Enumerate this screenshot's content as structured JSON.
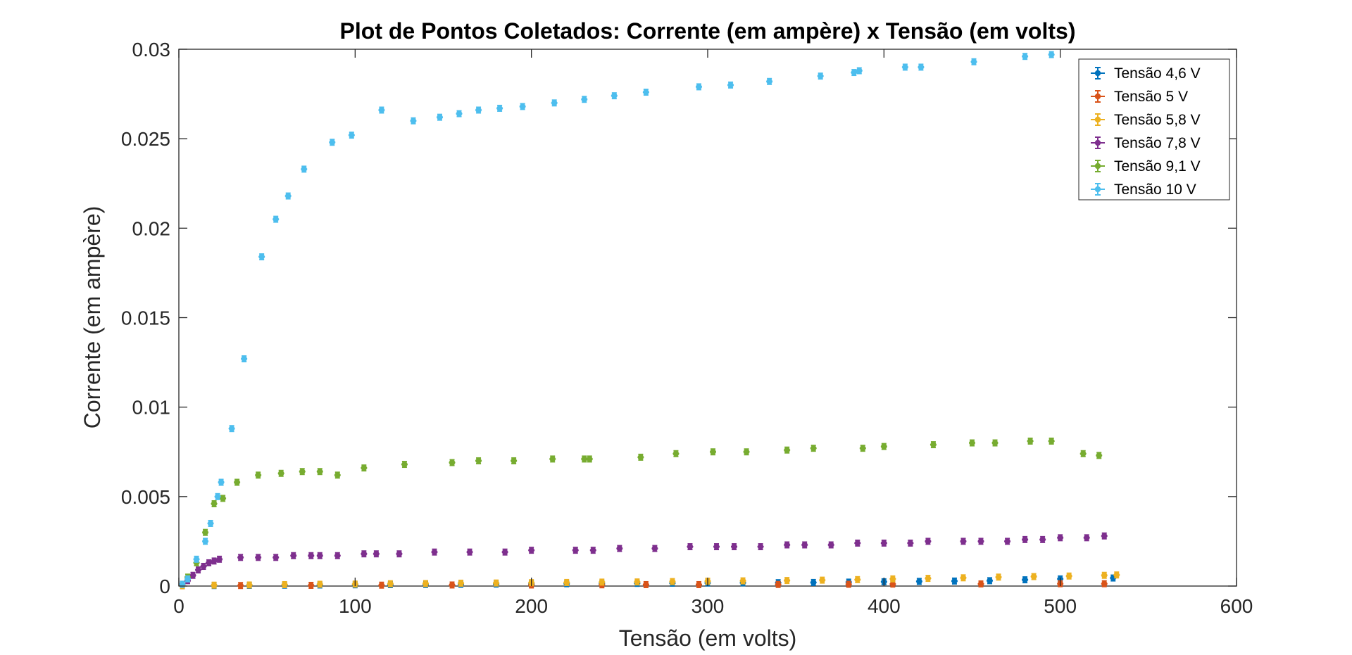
{
  "chart_data": {
    "type": "scatter",
    "title": "Plot de Pontos Coletados: Corrente (em ampère) x Tensão (em volts)",
    "xlabel": "Tensão (em volts)",
    "ylabel": "Corrente (em ampère)",
    "xlim": [
      0,
      600
    ],
    "ylim": [
      0,
      0.03
    ],
    "x_ticks": [
      0,
      100,
      200,
      300,
      400,
      500,
      600
    ],
    "x_tick_labels": [
      "0",
      "100",
      "200",
      "300",
      "400",
      "500",
      "600"
    ],
    "y_ticks": [
      0,
      0.005,
      0.01,
      0.015,
      0.02,
      0.025,
      0.03
    ],
    "y_tick_labels": [
      "0",
      "0.005",
      "0.01",
      "0.015",
      "0.02",
      "0.025",
      "0.03"
    ],
    "grid": false,
    "legend_position": "top-right",
    "error_bars": true,
    "series": [
      {
        "name": "Tensão 4,6 V",
        "color": "#0072BD",
        "x": [
          2,
          20,
          40,
          60,
          80,
          100,
          120,
          140,
          160,
          180,
          200,
          220,
          240,
          260,
          280,
          300,
          320,
          340,
          360,
          380,
          400,
          420,
          440,
          460,
          480,
          500,
          530
        ],
        "y": [
          2e-05,
          3e-05,
          4e-05,
          5e-05,
          6e-05,
          7e-05,
          8e-05,
          9e-05,
          0.0001,
          0.00011,
          0.00012,
          0.00013,
          0.00014,
          0.00015,
          0.00016,
          0.00017,
          0.00018,
          0.00019,
          0.0002,
          0.00022,
          0.00024,
          0.00026,
          0.00028,
          0.0003,
          0.00035,
          0.0004,
          0.00045
        ]
      },
      {
        "name": "Tensão 5 V",
        "color": "#D95319",
        "x": [
          2,
          35,
          75,
          115,
          155,
          200,
          240,
          265,
          295,
          340,
          380,
          405,
          455,
          500,
          525
        ],
        "y": [
          2e-05,
          3e-05,
          4e-05,
          5e-05,
          6e-05,
          6e-05,
          7e-05,
          8e-05,
          8e-05,
          9e-05,
          0.0001,
          0.00011,
          0.00012,
          0.00013,
          0.00013
        ]
      },
      {
        "name": "Tensão 5,8 V",
        "color": "#EDB120",
        "x": [
          2,
          20,
          40,
          60,
          80,
          100,
          120,
          140,
          160,
          180,
          200,
          220,
          240,
          260,
          280,
          300,
          320,
          345,
          365,
          385,
          405,
          425,
          445,
          465,
          485,
          505,
          525,
          532
        ],
        "y": [
          3e-05,
          5e-05,
          6e-05,
          8e-05,
          0.0001,
          0.00011,
          0.00013,
          0.00014,
          0.00016,
          0.00017,
          0.00019,
          0.0002,
          0.00022,
          0.00023,
          0.00025,
          0.00027,
          0.00029,
          0.00031,
          0.00033,
          0.00036,
          0.0004,
          0.00043,
          0.00046,
          0.0005,
          0.00053,
          0.00056,
          0.0006,
          0.00062
        ]
      },
      {
        "name": "Tensão 7,8 V",
        "color": "#7E2F8E",
        "x": [
          2,
          5,
          8,
          11,
          14,
          17,
          20,
          23,
          35,
          45,
          55,
          65,
          75,
          80,
          90,
          105,
          112,
          125,
          145,
          165,
          185,
          200,
          225,
          235,
          250,
          270,
          290,
          305,
          315,
          330,
          345,
          355,
          370,
          385,
          400,
          415,
          425,
          445,
          455,
          470,
          480,
          490,
          500,
          515,
          525
        ],
        "y": [
          0.0001,
          0.0003,
          0.0006,
          0.0009,
          0.0011,
          0.0013,
          0.0014,
          0.0015,
          0.0016,
          0.0016,
          0.0016,
          0.0017,
          0.0017,
          0.0017,
          0.0017,
          0.0018,
          0.0018,
          0.0018,
          0.0019,
          0.0019,
          0.0019,
          0.002,
          0.002,
          0.002,
          0.0021,
          0.0021,
          0.0022,
          0.0022,
          0.0022,
          0.0022,
          0.0023,
          0.0023,
          0.0023,
          0.0024,
          0.0024,
          0.0024,
          0.0025,
          0.0025,
          0.0025,
          0.0025,
          0.0026,
          0.0026,
          0.0027,
          0.0027,
          0.0028
        ]
      },
      {
        "name": "Tensão 9,1 V",
        "color": "#77AC30",
        "x": [
          5,
          10,
          15,
          20,
          25,
          33,
          45,
          58,
          70,
          80,
          90,
          105,
          128,
          155,
          170,
          190,
          212,
          230,
          233,
          262,
          282,
          303,
          322,
          345,
          360,
          388,
          400,
          428,
          450,
          463,
          483,
          495,
          513,
          522
        ],
        "y": [
          0.0005,
          0.0013,
          0.003,
          0.0046,
          0.0049,
          0.0058,
          0.0062,
          0.0063,
          0.0064,
          0.0064,
          0.0062,
          0.0066,
          0.0068,
          0.0069,
          0.007,
          0.007,
          0.0071,
          0.0071,
          0.0071,
          0.0072,
          0.0074,
          0.0075,
          0.0075,
          0.0076,
          0.0077,
          0.0077,
          0.0078,
          0.0079,
          0.008,
          0.008,
          0.0081,
          0.0081,
          0.0074,
          0.0073
        ]
      },
      {
        "name": "Tensão 10 V",
        "color": "#4DBEEE",
        "x": [
          2,
          5,
          10,
          15,
          18,
          22,
          24,
          30,
          37,
          47,
          55,
          62,
          71,
          87,
          98,
          115,
          133,
          148,
          159,
          170,
          182,
          195,
          213,
          230,
          247,
          265,
          295,
          313,
          335,
          364,
          383,
          386,
          412,
          421,
          451,
          480,
          495
        ],
        "y": [
          0.0001,
          0.0004,
          0.0015,
          0.0025,
          0.0035,
          0.005,
          0.0058,
          0.0088,
          0.0127,
          0.0184,
          0.0205,
          0.0218,
          0.0233,
          0.0248,
          0.0252,
          0.0266,
          0.026,
          0.0262,
          0.0264,
          0.0266,
          0.0267,
          0.0268,
          0.027,
          0.0272,
          0.0274,
          0.0276,
          0.0279,
          0.028,
          0.0282,
          0.0285,
          0.0287,
          0.0288,
          0.029,
          0.029,
          0.0293,
          0.0296,
          0.0297
        ]
      }
    ]
  }
}
